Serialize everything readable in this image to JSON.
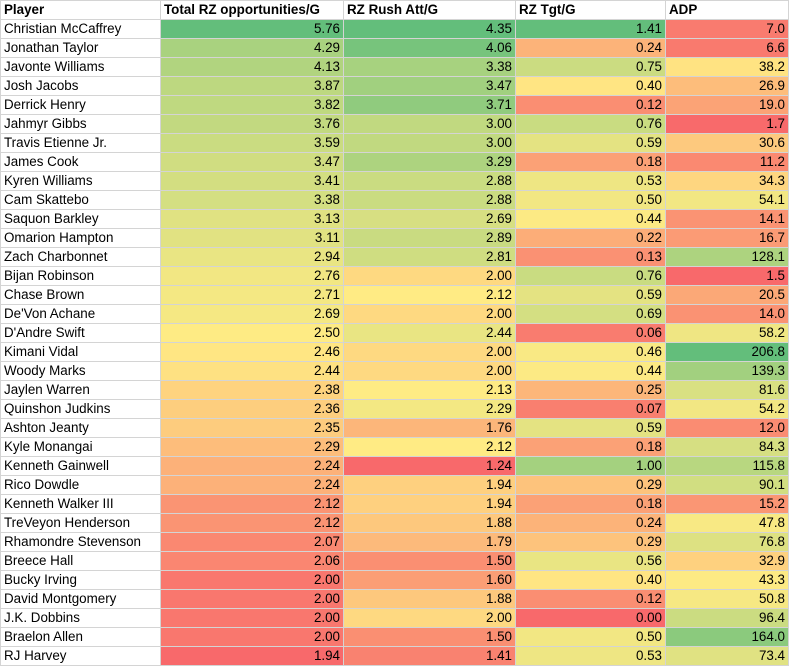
{
  "headers": [
    "Player",
    "Total RZ opportunities/G",
    "RZ Rush Att/G",
    "RZ Tgt/G",
    "ADP"
  ],
  "rows": [
    [
      "Christian McCaffrey",
      "5.76",
      "4.35",
      "1.41",
      "7.0"
    ],
    [
      "Jonathan Taylor",
      "4.29",
      "4.06",
      "0.24",
      "6.6"
    ],
    [
      "Javonte Williams",
      "4.13",
      "3.38",
      "0.75",
      "38.2"
    ],
    [
      "Josh Jacobs",
      "3.87",
      "3.47",
      "0.40",
      "26.9"
    ],
    [
      "Derrick Henry",
      "3.82",
      "3.71",
      "0.12",
      "19.0"
    ],
    [
      "Jahmyr Gibbs",
      "3.76",
      "3.00",
      "0.76",
      "1.7"
    ],
    [
      "Travis Etienne Jr.",
      "3.59",
      "3.00",
      "0.59",
      "30.6"
    ],
    [
      "James Cook",
      "3.47",
      "3.29",
      "0.18",
      "11.2"
    ],
    [
      "Kyren Williams",
      "3.41",
      "2.88",
      "0.53",
      "34.3"
    ],
    [
      "Cam Skattebo",
      "3.38",
      "2.88",
      "0.50",
      "54.1"
    ],
    [
      "Saquon Barkley",
      "3.13",
      "2.69",
      "0.44",
      "14.1"
    ],
    [
      "Omarion Hampton",
      "3.11",
      "2.89",
      "0.22",
      "16.7"
    ],
    [
      "Zach Charbonnet",
      "2.94",
      "2.81",
      "0.13",
      "128.1"
    ],
    [
      "Bijan Robinson",
      "2.76",
      "2.00",
      "0.76",
      "1.5"
    ],
    [
      "Chase Brown",
      "2.71",
      "2.12",
      "0.59",
      "20.5"
    ],
    [
      "De'Von Achane",
      "2.69",
      "2.00",
      "0.69",
      "14.0"
    ],
    [
      "D'Andre Swift",
      "2.50",
      "2.44",
      "0.06",
      "58.2"
    ],
    [
      "Kimani Vidal",
      "2.46",
      "2.00",
      "0.46",
      "206.8"
    ],
    [
      "Woody Marks",
      "2.44",
      "2.00",
      "0.44",
      "139.3"
    ],
    [
      "Jaylen Warren",
      "2.38",
      "2.13",
      "0.25",
      "81.6"
    ],
    [
      "Quinshon Judkins",
      "2.36",
      "2.29",
      "0.07",
      "54.2"
    ],
    [
      "Ashton Jeanty",
      "2.35",
      "1.76",
      "0.59",
      "12.0"
    ],
    [
      "Kyle Monangai",
      "2.29",
      "2.12",
      "0.18",
      "84.3"
    ],
    [
      "Kenneth Gainwell",
      "2.24",
      "1.24",
      "1.00",
      "115.8"
    ],
    [
      "Rico Dowdle",
      "2.24",
      "1.94",
      "0.29",
      "90.1"
    ],
    [
      "Kenneth Walker III",
      "2.12",
      "1.94",
      "0.18",
      "15.2"
    ],
    [
      "TreVeyon Henderson",
      "2.12",
      "1.88",
      "0.24",
      "47.8"
    ],
    [
      "Rhamondre Stevenson",
      "2.07",
      "1.79",
      "0.29",
      "76.8"
    ],
    [
      "Breece Hall",
      "2.06",
      "1.50",
      "0.56",
      "32.9"
    ],
    [
      "Bucky Irving",
      "2.00",
      "1.60",
      "0.40",
      "43.3"
    ],
    [
      "David Montgomery",
      "2.00",
      "1.88",
      "0.12",
      "50.8"
    ],
    [
      "J.K. Dobbins",
      "2.00",
      "2.00",
      "0.00",
      "96.4"
    ],
    [
      "Braelon Allen",
      "2.00",
      "1.50",
      "0.50",
      "164.0"
    ],
    [
      "RJ Harvey",
      "1.94",
      "1.41",
      "0.53",
      "73.4"
    ]
  ],
  "colors": {
    "high": "#63be7b",
    "mid": "#ffeb84",
    "low": "#f8696b",
    "grid": "#d4d4d4"
  }
}
